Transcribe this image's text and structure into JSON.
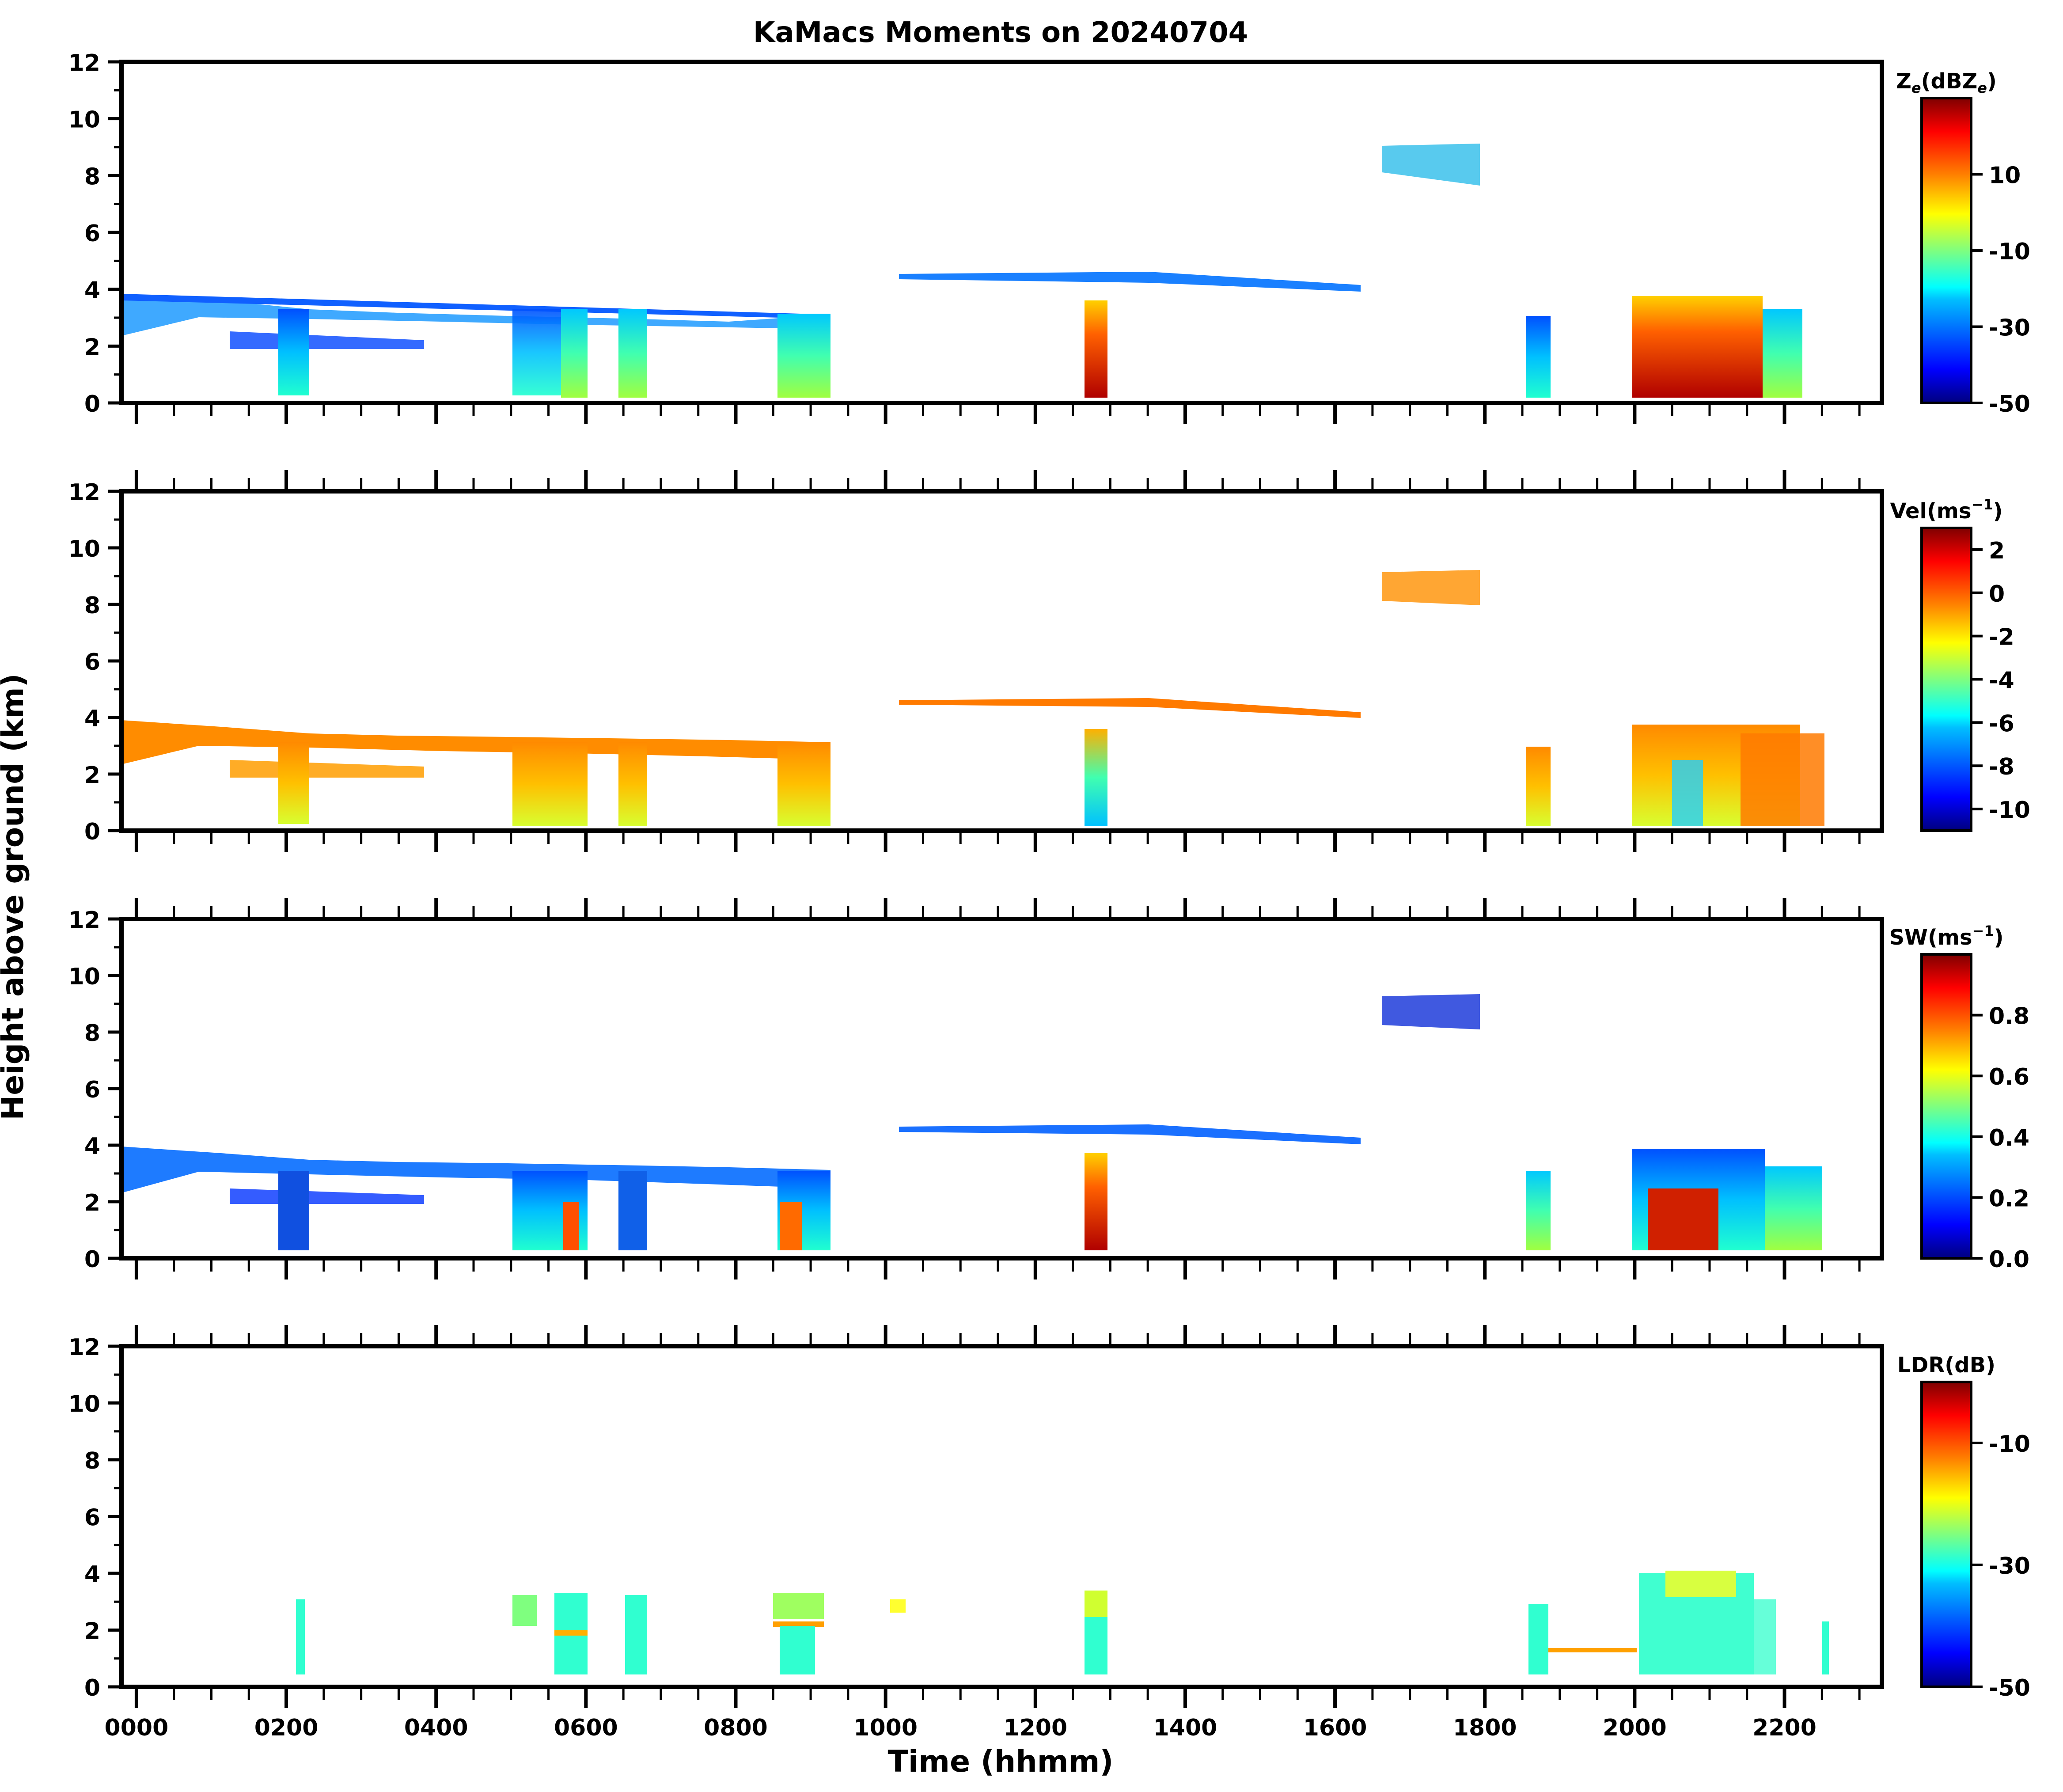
{
  "chart_data": {
    "type": "heatmap",
    "title": "KaMacs Moments on 20240704",
    "xlabel": "Time (hhmm)",
    "ylabel": "Height above ground (km)",
    "x_tick_labels": [
      "0000",
      "0200",
      "0400",
      "0600",
      "0800",
      "1000",
      "1200",
      "1400",
      "1600",
      "1800",
      "2000",
      "2200"
    ],
    "x_tick_values": [
      0,
      200,
      400,
      600,
      800,
      1000,
      1200,
      1400,
      1600,
      1800,
      2000,
      2200
    ],
    "xlim": [
      -0.2,
      23.3
    ],
    "ylim": [
      0,
      12
    ],
    "y_tick_values": [
      0,
      2,
      4,
      6,
      8,
      10,
      12
    ],
    "y_tick_labels": [
      "0",
      "2",
      "4",
      "6",
      "8",
      "10",
      "12"
    ],
    "panels": [
      {
        "id": "ze",
        "colorbar_label": "Ze(dBZe)",
        "colorbar_label_main": "Z",
        "colorbar_label_sub": "e",
        "colorbar_label_rest": "(dBZ",
        "colorbar_label_sub2": "e",
        "colorbar_label_close": ")",
        "cmap": "jet",
        "vmin": -50,
        "vmax": 30,
        "cbar_ticks": [
          -50,
          -30,
          -10,
          10
        ],
        "cbar_tick_labels": [
          "-50",
          "-30",
          "-10",
          "10"
        ]
      },
      {
        "id": "vel",
        "colorbar_label": "Vel(ms⁻¹)",
        "colorbar_label_main": "Vel(ms",
        "colorbar_label_sup": "−1",
        "colorbar_label_close": ")",
        "cmap": "jet",
        "vmin": -11,
        "vmax": 3,
        "cbar_ticks": [
          -10,
          -8,
          -6,
          -4,
          -2,
          0,
          2
        ],
        "cbar_tick_labels": [
          "-10",
          "-8",
          "-6",
          "-4",
          "-2",
          "0",
          "2"
        ]
      },
      {
        "id": "sw",
        "colorbar_label": "SW(ms⁻¹)",
        "colorbar_label_main": "SW(ms",
        "colorbar_label_sup": "−1",
        "colorbar_label_close": ")",
        "cmap": "jet",
        "vmin": 0,
        "vmax": 1,
        "cbar_ticks": [
          0,
          0.2,
          0.4,
          0.6,
          0.8
        ],
        "cbar_tick_labels": [
          "0.0",
          "0.2",
          "0.4",
          "0.6",
          "0.8"
        ]
      },
      {
        "id": "ldr",
        "colorbar_label": "LDR(dB)",
        "colorbar_label_main": "LDR(dB)",
        "cmap": "jet",
        "vmin": -50,
        "vmax": 0,
        "cbar_ticks": [
          -50,
          -30,
          -10
        ],
        "cbar_tick_labels": [
          "-50",
          "-30",
          "-10"
        ]
      }
    ]
  },
  "colors": {
    "jet": [
      "#00007f",
      "#0000ff",
      "#007fff",
      "#00ffff",
      "#7fff7f",
      "#ffff00",
      "#ff7f00",
      "#ff0000",
      "#7f0000"
    ]
  }
}
